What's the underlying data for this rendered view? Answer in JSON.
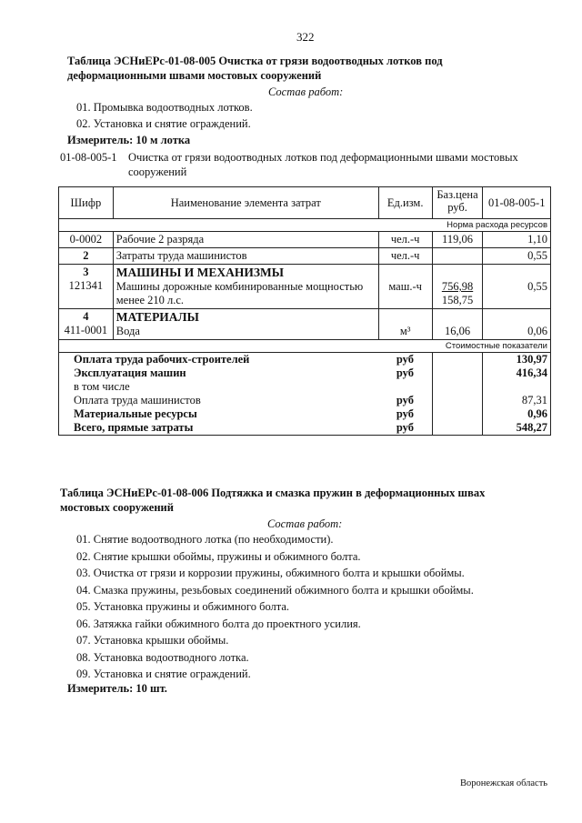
{
  "page_number": "322",
  "table1": {
    "title_line1": "Таблица  ЭСНиЕРс-01-08-005  Очистка от грязи водоотводных лотков под",
    "title_line2": "деформационными швами мостовых сооружений",
    "works_heading": "Состав работ:",
    "works": [
      "01. Промывка водоотводных лотков.",
      "02. Установка и снятие ограждений."
    ],
    "measure": "Измеритель: 10 м лотка",
    "code": "01-08-005-1",
    "code_desc_line1": "Очистка от грязи водоотводных лотков под деформационными швами мостовых",
    "code_desc_line2": "сооружений",
    "headers": [
      "Шифр",
      "Наименование элемента затрат",
      "Ед.изм.",
      "Баз.цена руб.",
      "01-08-005-1"
    ],
    "norm_label": "Норма расхода ресурсов",
    "rows": [
      {
        "code": "0-0002",
        "name": "Рабочие 2 разряда",
        "unit": "чел.-ч",
        "price": "119,06",
        "value": "1,10"
      },
      {
        "code": "2",
        "name": "Затраты труда машинистов",
        "unit": "чел.-ч",
        "price": "",
        "value": "0,55"
      },
      {
        "code": "3",
        "section": "МАШИНЫ И МЕХАНИЗМЫ",
        "code2": "121341",
        "name": "Машины дорожные комбинированные мощностью менее 210 л.с.",
        "unit": "маш.-ч",
        "price": "756,98",
        "price2": "158,75",
        "value": "0,55"
      },
      {
        "code": "4",
        "section": "МАТЕРИАЛЫ",
        "code2": "411-0001",
        "name": "Вода",
        "unit": "м³",
        "price": "16,06",
        "value": "0,06"
      }
    ],
    "cost_label": "Стоимостные показатели",
    "totals": [
      {
        "name": "Оплата труда рабочих-строителей",
        "unit": "руб",
        "value": "130,97"
      },
      {
        "name": "Эксплуатация машин",
        "unit": "руб",
        "value": "416,34"
      },
      {
        "name": "в том числе",
        "unit": "",
        "value": ""
      },
      {
        "name": "Оплата труда машинистов",
        "unit": "руб",
        "value": "87,31"
      },
      {
        "name": "Материальные ресурсы",
        "unit": "руб",
        "value": "0,96"
      },
      {
        "name": "Всего, прямые затраты",
        "unit": "руб",
        "value": "548,27"
      }
    ]
  },
  "table2": {
    "title_line1": "Таблица  ЭСНиЕРс-01-08-006  Подтяжка и смазка пружин в деформационных швах",
    "title_line2": "мостовых сооружений",
    "works_heading": "Состав работ:",
    "works": [
      "01. Снятие водоотводного лотка (по необходимости).",
      "02. Снятие крышки обоймы, пружины и обжимного болта.",
      "03. Очистка от грязи и коррозии пружины, обжимного болта и крышки обоймы.",
      "04. Смазка пружины, резьбовых соединений обжимного болта и крышки обоймы.",
      "05. Установка пружины и обжимного болта.",
      "06. Затяжка гайки обжимного болта до проектного усилия.",
      "07. Установка крышки обоймы.",
      "08. Установка водоотводного лотка.",
      "09. Установка и снятие ограждений."
    ],
    "measure": "Измеритель: 10 шт."
  },
  "footer": "Воронежская область"
}
